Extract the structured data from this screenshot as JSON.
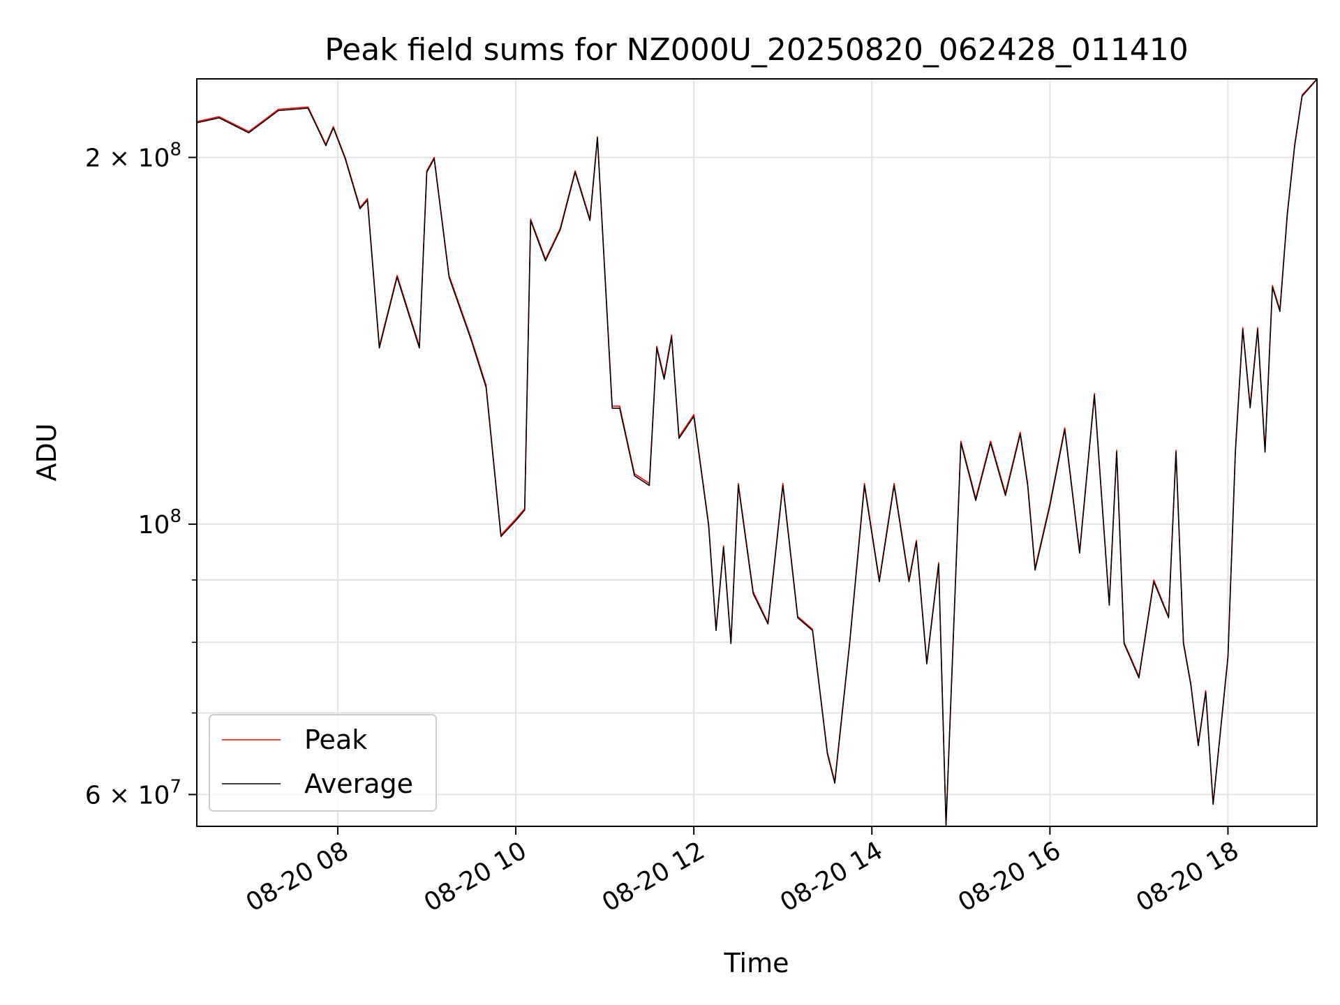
{
  "chart_data": {
    "type": "line",
    "title": "Peak field sums for NZ000U_20250820_062428_011410",
    "xlabel": "Time",
    "ylabel": "ADU",
    "yscale": "log",
    "ylim": [
      56500000,
      232000000
    ],
    "xlim": [
      "2025-08-20 06:25",
      "2025-08-20 19:00"
    ],
    "grid": true,
    "legend_position": "lower-left",
    "x_tick_labels": [
      "08-20 08",
      "08-20 10",
      "08-20 12",
      "08-20 14",
      "08-20 16",
      "08-20 18"
    ],
    "x_tick_values": [
      "2025-08-20 08:00",
      "2025-08-20 10:00",
      "2025-08-20 12:00",
      "2025-08-20 14:00",
      "2025-08-20 16:00",
      "2025-08-20 18:00"
    ],
    "y_tick_labels": [
      {
        "base": "6 × 10",
        "exp": "7",
        "value": 60000000
      },
      {
        "base": "10",
        "exp": "8",
        "value": 100000000
      },
      {
        "base": "2 × 10",
        "exp": "8",
        "value": 200000000
      }
    ],
    "y_minor_ticks": [
      70000000,
      80000000,
      90000000
    ],
    "colors": {
      "peak": "#ff0000",
      "average": "#000000",
      "grid": "#e3e3e3"
    },
    "x": [
      "2025-08-20 06:25",
      "2025-08-20 06:40",
      "2025-08-20 07:00",
      "2025-08-20 07:20",
      "2025-08-20 07:40",
      "2025-08-20 07:52",
      "2025-08-20 07:57",
      "2025-08-20 08:05",
      "2025-08-20 08:15",
      "2025-08-20 08:20",
      "2025-08-20 08:28",
      "2025-08-20 08:40",
      "2025-08-20 08:55",
      "2025-08-20 09:00",
      "2025-08-20 09:05",
      "2025-08-20 09:15",
      "2025-08-20 09:30",
      "2025-08-20 09:40",
      "2025-08-20 09:50",
      "2025-08-20 10:00",
      "2025-08-20 10:06",
      "2025-08-20 10:10",
      "2025-08-20 10:20",
      "2025-08-20 10:30",
      "2025-08-20 10:40",
      "2025-08-20 10:50",
      "2025-08-20 10:55",
      "2025-08-20 11:05",
      "2025-08-20 11:10",
      "2025-08-20 11:20",
      "2025-08-20 11:30",
      "2025-08-20 11:35",
      "2025-08-20 11:40",
      "2025-08-20 11:45",
      "2025-08-20 11:50",
      "2025-08-20 12:00",
      "2025-08-20 12:10",
      "2025-08-20 12:15",
      "2025-08-20 12:20",
      "2025-08-20 12:25",
      "2025-08-20 12:30",
      "2025-08-20 12:40",
      "2025-08-20 12:50",
      "2025-08-20 13:00",
      "2025-08-20 13:10",
      "2025-08-20 13:20",
      "2025-08-20 13:30",
      "2025-08-20 13:35",
      "2025-08-20 13:45",
      "2025-08-20 13:55",
      "2025-08-20 14:05",
      "2025-08-20 14:15",
      "2025-08-20 14:25",
      "2025-08-20 14:30",
      "2025-08-20 14:37",
      "2025-08-20 14:45",
      "2025-08-20 14:50",
      "2025-08-20 15:00",
      "2025-08-20 15:10",
      "2025-08-20 15:20",
      "2025-08-20 15:30",
      "2025-08-20 15:40",
      "2025-08-20 15:45",
      "2025-08-20 15:50",
      "2025-08-20 16:00",
      "2025-08-20 16:10",
      "2025-08-20 16:20",
      "2025-08-20 16:30",
      "2025-08-20 16:40",
      "2025-08-20 16:45",
      "2025-08-20 16:50",
      "2025-08-20 17:00",
      "2025-08-20 17:10",
      "2025-08-20 17:20",
      "2025-08-20 17:25",
      "2025-08-20 17:30",
      "2025-08-20 17:35",
      "2025-08-20 17:40",
      "2025-08-20 17:45",
      "2025-08-20 17:50",
      "2025-08-20 18:00",
      "2025-08-20 18:05",
      "2025-08-20 18:10",
      "2025-08-20 18:15",
      "2025-08-20 18:20",
      "2025-08-20 18:25",
      "2025-08-20 18:30",
      "2025-08-20 18:35",
      "2025-08-20 18:40",
      "2025-08-20 18:45",
      "2025-08-20 18:50",
      "2025-08-20 19:00"
    ],
    "series": [
      {
        "name": "Peak",
        "values": [
          214000000,
          216000000,
          210000000,
          219000000,
          220000000,
          205000000,
          212000000,
          200000000,
          182000000,
          185000000,
          140000000,
          160000000,
          140000000,
          195000000,
          200000000,
          160000000,
          142000000,
          130000000,
          98000000,
          101000000,
          103000000,
          178000000,
          165000000,
          175000000,
          195000000,
          178000000,
          208000000,
          125000000,
          125000000,
          110000000,
          108000000,
          140000000,
          132000000,
          143000000,
          118000000,
          123000000,
          100000000,
          82000000,
          96000000,
          80000000,
          108000000,
          88000000,
          83000000,
          108000000,
          84000000,
          82000000,
          65000000,
          61500000,
          80000000,
          108000000,
          90000000,
          108000000,
          90000000,
          97000000,
          77000000,
          93000000,
          56700000,
          117000000,
          105000000,
          117000000,
          106000000,
          119000000,
          108000000,
          92000000,
          104000000,
          120000000,
          95000000,
          128000000,
          86000000,
          115000000,
          80000000,
          75000000,
          90000000,
          84000000,
          115000000,
          80000000,
          74000000,
          66000000,
          73000000,
          59000000,
          78000000,
          115000000,
          145000000,
          125000000,
          145000000,
          115000000,
          157000000,
          150000000,
          180000000,
          205000000,
          225000000,
          232000000
        ]
      },
      {
        "name": "Average",
        "values": [
          213500000,
          215500000,
          209500000,
          218500000,
          219500000,
          204500000,
          211500000,
          199500000,
          181500000,
          184500000,
          139500000,
          159500000,
          139500000,
          194500000,
          199500000,
          159500000,
          141500000,
          129500000,
          97700000,
          100700000,
          102700000,
          177500000,
          164500000,
          174500000,
          194500000,
          177500000,
          207500000,
          124500000,
          124500000,
          109600000,
          107600000,
          139500000,
          131500000,
          142500000,
          117600000,
          122600000,
          99700000,
          81800000,
          95700000,
          79800000,
          107600000,
          87700000,
          82800000,
          107600000,
          83800000,
          81800000,
          64800000,
          61300000,
          79800000,
          107600000,
          89700000,
          107600000,
          89700000,
          96700000,
          76800000,
          92700000,
          56600000,
          116600000,
          104600000,
          116600000,
          105600000,
          118600000,
          107600000,
          91700000,
          103600000,
          119600000,
          94700000,
          127600000,
          85800000,
          114600000,
          79800000,
          74800000,
          89700000,
          83800000,
          114600000,
          79800000,
          73800000,
          65800000,
          72800000,
          58900000,
          77800000,
          114600000,
          144500000,
          124600000,
          144500000,
          114600000,
          156500000,
          149500000,
          179500000,
          204500000,
          224500000,
          231800000
        ]
      }
    ]
  }
}
